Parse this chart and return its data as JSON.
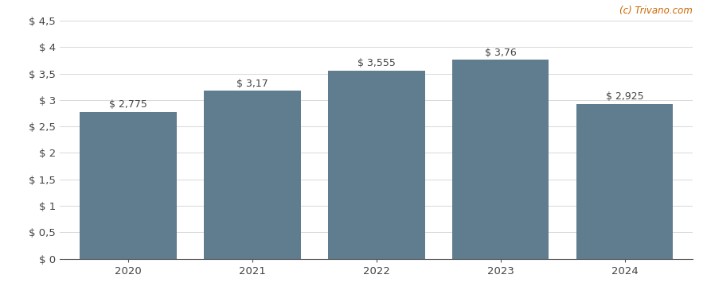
{
  "categories": [
    "2020",
    "2021",
    "2022",
    "2023",
    "2024"
  ],
  "values": [
    2.775,
    3.17,
    3.555,
    3.76,
    2.925
  ],
  "labels": [
    "$ 2,775",
    "$ 3,17",
    "$ 3,555",
    "$ 3,76",
    "$ 2,925"
  ],
  "bar_color": "#607d8f",
  "background_color": "#ffffff",
  "ylim": [
    0,
    4.5
  ],
  "yticks": [
    0,
    0.5,
    1.0,
    1.5,
    2.0,
    2.5,
    3.0,
    3.5,
    4.0,
    4.5
  ],
  "ytick_labels": [
    "$ 0",
    "$ 0,5",
    "$ 1",
    "$ 1,5",
    "$ 2",
    "$ 2,5",
    "$ 3",
    "$ 3,5",
    "$ 4",
    "$ 4,5"
  ],
  "grid_color": "#d8d8d8",
  "watermark": "(c) Trivano.com",
  "watermark_color": "#cc6600",
  "label_color": "#444444",
  "label_fontsize": 9.0,
  "tick_fontsize": 9.5,
  "bar_width": 0.78
}
